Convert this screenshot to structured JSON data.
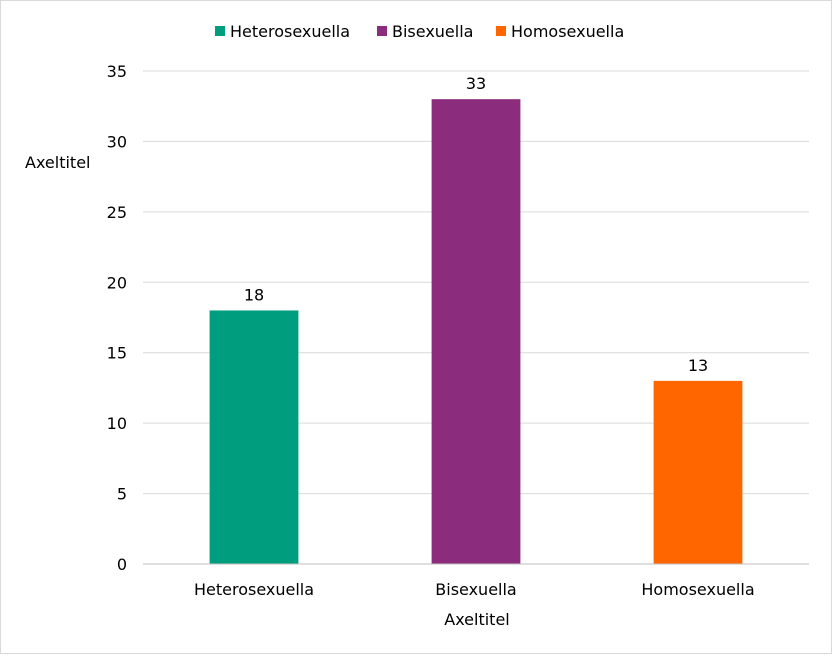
{
  "chart_data": {
    "type": "bar",
    "categories": [
      "Heterosexuella",
      "Bisexuella",
      "Homosexuella"
    ],
    "values": [
      18,
      33,
      13
    ],
    "colors": [
      "#009e7e",
      "#8b2c7c",
      "#ff6600"
    ],
    "data_labels": [
      "18",
      "33",
      "13"
    ],
    "yticks": [
      "0",
      "5",
      "10",
      "15",
      "20",
      "25",
      "30",
      "35"
    ],
    "ylim": [
      0,
      35
    ],
    "ystep": 5,
    "xlabel": "Axeltitel",
    "ylabel": "Axeltitel",
    "grid": true,
    "legend_position": "top",
    "legend": [
      {
        "label": "Heterosexuella",
        "color": "#009e7e"
      },
      {
        "label": "Bisexuella",
        "color": "#8b2c7c"
      },
      {
        "label": "Homosexuella",
        "color": "#ff6600"
      }
    ]
  }
}
